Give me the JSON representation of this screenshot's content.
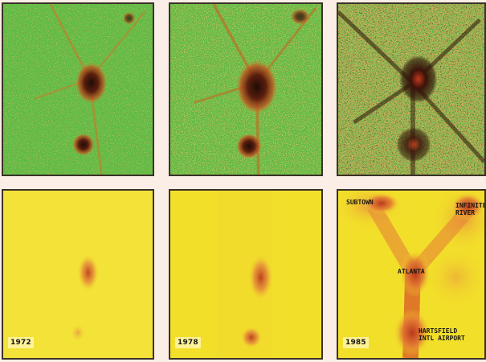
{
  "colors": {
    "vegetation_green": "#5fba45",
    "urban_dark": "#2b1408",
    "urban_red": "#b7361a",
    "sparse_orange": "#d9892a",
    "density_base_yellow": "#f2df2a",
    "density_mid_orange": "#ec9a3a",
    "density_high_red": "#b9371c",
    "divider": "#fbeee6"
  },
  "years": {
    "first": "1972",
    "second": "1978",
    "third": "1985"
  },
  "places": {
    "town_nw": "SUBTOWN",
    "town_ne": "INFINITE\nRIVER",
    "town_center": "ATLANTA",
    "town_south": "HARTSFIELD\nINTL AIRPORT"
  }
}
